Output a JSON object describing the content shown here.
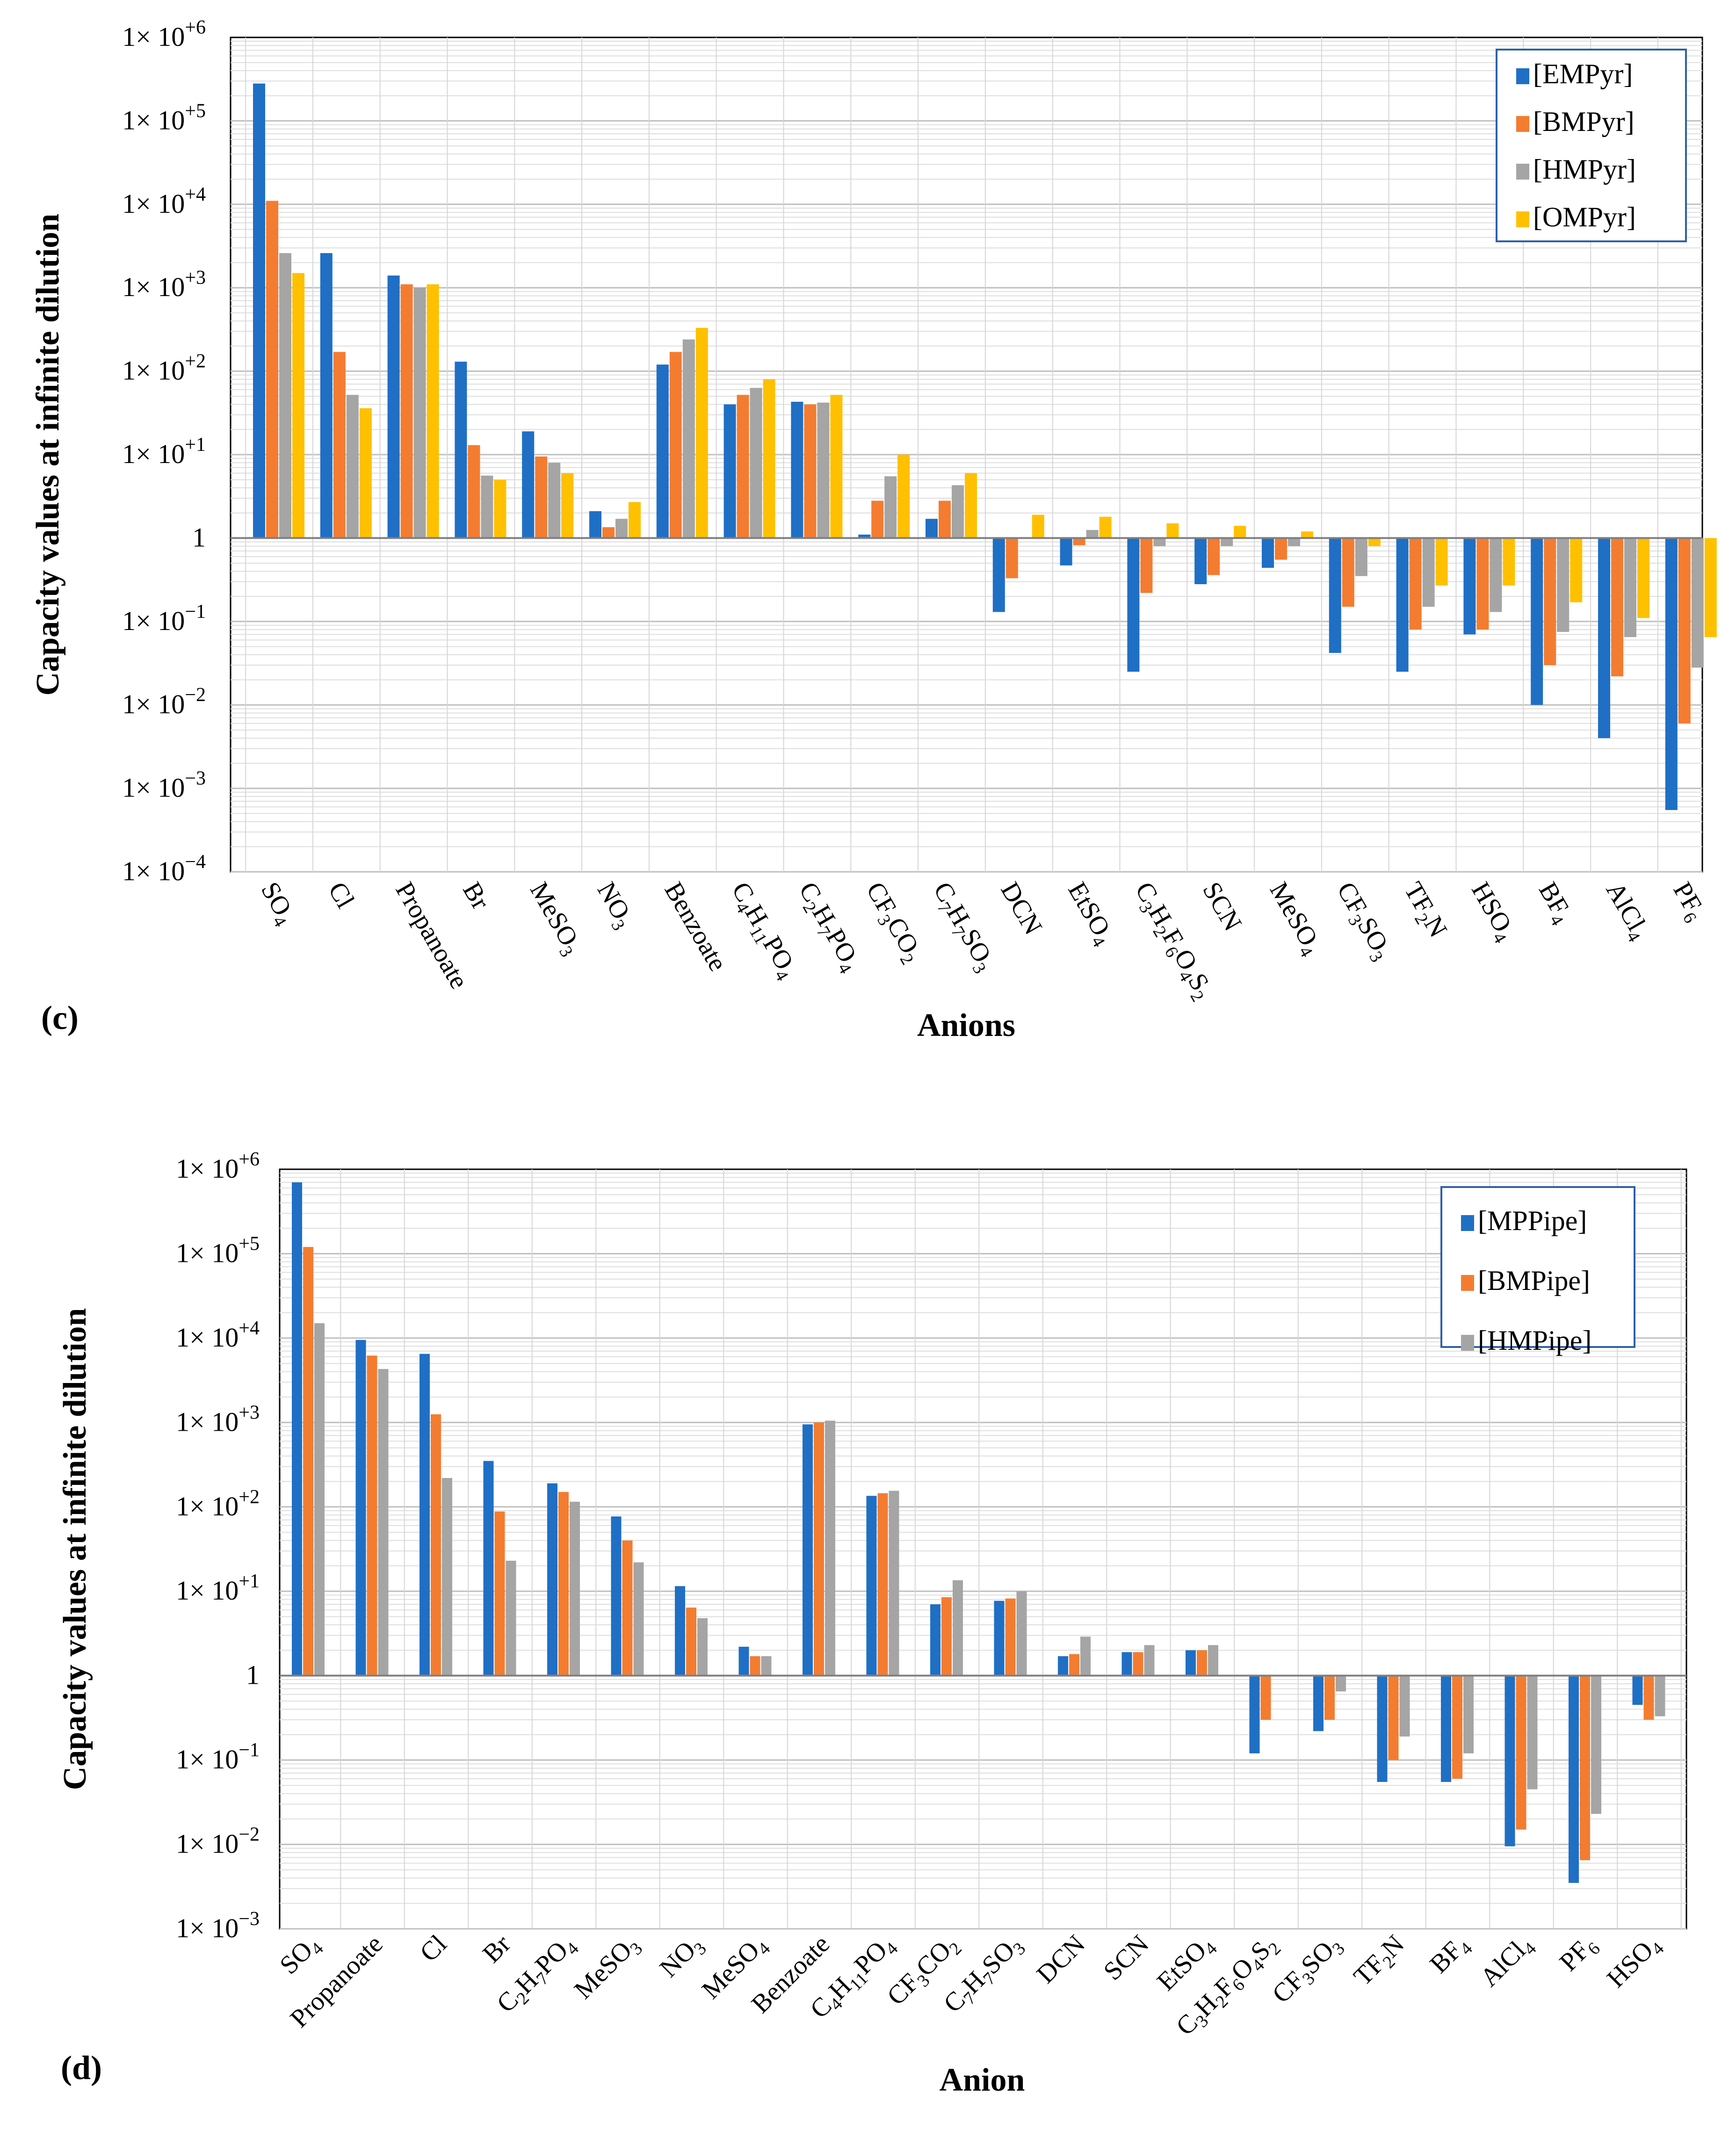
{
  "chart_data": [
    {
      "id": "c",
      "type": "bar",
      "panel_label": "(c)",
      "xlabel": "Anions",
      "ylabel": "Capacity values at infinite dilution",
      "yscale": "log",
      "ylim": [
        0.0001,
        1000000
      ],
      "baseline": 1,
      "grid": true,
      "legend_position": "top-right",
      "y_tick_labels": [
        {
          "base": "1× 10",
          "exp": "+6"
        },
        {
          "base": "1× 10",
          "exp": "+5"
        },
        {
          "base": "1× 10",
          "exp": "+4"
        },
        {
          "base": "1× 10",
          "exp": "+3"
        },
        {
          "base": "1× 10",
          "exp": "+2"
        },
        {
          "base": "1× 10",
          "exp": "+1"
        },
        {
          "base": "1",
          "exp": ""
        },
        {
          "base": "1× 10",
          "exp": "−1"
        },
        {
          "base": "1× 10",
          "exp": "−2"
        },
        {
          "base": "1× 10",
          "exp": "−3"
        },
        {
          "base": "1× 10",
          "exp": "−4"
        }
      ],
      "categories": [
        [
          {
            "t": "SO"
          },
          {
            "t": "4",
            "s": "sub"
          }
        ],
        [
          {
            "t": "Cl"
          }
        ],
        [
          {
            "t": "Propanoate"
          }
        ],
        [
          {
            "t": "Br"
          }
        ],
        [
          {
            "t": "MeSO"
          },
          {
            "t": "3",
            "s": "sub"
          }
        ],
        [
          {
            "t": "NO"
          },
          {
            "t": "3",
            "s": "sub"
          }
        ],
        [
          {
            "t": "Benzoate"
          }
        ],
        [
          {
            "t": "C"
          },
          {
            "t": "4",
            "s": "sub"
          },
          {
            "t": "H"
          },
          {
            "t": "11",
            "s": "sub"
          },
          {
            "t": "PO"
          },
          {
            "t": "4",
            "s": "sub"
          }
        ],
        [
          {
            "t": "C"
          },
          {
            "t": "2",
            "s": "sub"
          },
          {
            "t": "H"
          },
          {
            "t": "7",
            "s": "sub"
          },
          {
            "t": "PO"
          },
          {
            "t": "4",
            "s": "sub"
          }
        ],
        [
          {
            "t": "CF"
          },
          {
            "t": "3",
            "s": "sub"
          },
          {
            "t": "CO"
          },
          {
            "t": "2",
            "s": "sub"
          }
        ],
        [
          {
            "t": "C"
          },
          {
            "t": "7",
            "s": "sub"
          },
          {
            "t": "H"
          },
          {
            "t": "7",
            "s": "sub"
          },
          {
            "t": "SO"
          },
          {
            "t": "3",
            "s": "sub"
          }
        ],
        [
          {
            "t": "DCN"
          }
        ],
        [
          {
            "t": "EtSO"
          },
          {
            "t": "4",
            "s": "sub"
          }
        ],
        [
          {
            "t": "C"
          },
          {
            "t": "3",
            "s": "sub"
          },
          {
            "t": "H"
          },
          {
            "t": "2",
            "s": "sub"
          },
          {
            "t": "F"
          },
          {
            "t": "6",
            "s": "sub"
          },
          {
            "t": "O"
          },
          {
            "t": "4",
            "s": "sub"
          },
          {
            "t": "S"
          },
          {
            "t": "2",
            "s": "sub"
          }
        ],
        [
          {
            "t": "SCN"
          }
        ],
        [
          {
            "t": "MeSO"
          },
          {
            "t": "4",
            "s": "sub"
          }
        ],
        [
          {
            "t": "CF"
          },
          {
            "t": "3",
            "s": "sub"
          },
          {
            "t": "SO"
          },
          {
            "t": "3",
            "s": "sub"
          }
        ],
        [
          {
            "t": "TF"
          },
          {
            "t": "2",
            "s": "sub"
          },
          {
            "t": "N"
          }
        ],
        [
          {
            "t": "HSO"
          },
          {
            "t": "4",
            "s": "sub"
          }
        ],
        [
          {
            "t": "BF"
          },
          {
            "t": "4",
            "s": "sub"
          }
        ],
        [
          {
            "t": "AlCl"
          },
          {
            "t": "4",
            "s": "sub"
          }
        ],
        [
          {
            "t": "PF"
          },
          {
            "t": "6",
            "s": "sub"
          }
        ]
      ],
      "series": [
        {
          "name": "[EMPyr]",
          "color": "#1F6FC5",
          "values": [
            280000,
            2600,
            1400,
            130,
            19,
            2.1,
            120,
            40,
            43,
            1.1,
            1.7,
            0.13,
            0.47,
            0.025,
            0.28,
            0.44,
            0.042,
            0.025,
            0.07,
            0.01,
            0.004,
            0.00055
          ]
        },
        {
          "name": "[BMPyr]",
          "color": "#F47C30",
          "values": [
            11000,
            170,
            1100,
            13,
            9.5,
            1.35,
            170,
            52,
            40,
            2.8,
            2.8,
            0.33,
            0.82,
            0.22,
            0.36,
            0.55,
            0.15,
            0.08,
            0.08,
            0.03,
            0.022,
            0.006
          ]
        },
        {
          "name": "[HMPyr]",
          "color": "#A5A5A5",
          "values": [
            2600,
            52,
            1000,
            5.6,
            8,
            1.7,
            240,
            63,
            42,
            5.5,
            4.3,
            1,
            1.25,
            0.8,
            0.8,
            0.8,
            0.35,
            0.15,
            0.13,
            0.075,
            0.065,
            0.028
          ]
        },
        {
          "name": "[OMPyr]",
          "color": "#FFC000",
          "values": [
            1500,
            36,
            1100,
            5,
            6,
            2.7,
            330,
            80,
            52,
            10,
            6,
            1.9,
            1.8,
            1.5,
            1.4,
            1.2,
            0.8,
            0.27,
            0.27,
            0.17,
            0.11,
            0.065
          ]
        }
      ]
    },
    {
      "id": "d",
      "type": "bar",
      "panel_label": "(d)",
      "xlabel": "Anion",
      "ylabel": "Capacity values at infinite dilution",
      "yscale": "log",
      "ylim": [
        0.001,
        1000000
      ],
      "baseline": 1,
      "grid": true,
      "legend_position": "top-right",
      "y_tick_labels": [
        {
          "base": "1× 10",
          "exp": "+6"
        },
        {
          "base": "1× 10",
          "exp": "+5"
        },
        {
          "base": "1× 10",
          "exp": "+4"
        },
        {
          "base": "1× 10",
          "exp": "+3"
        },
        {
          "base": "1× 10",
          "exp": "+2"
        },
        {
          "base": "1× 10",
          "exp": "+1"
        },
        {
          "base": "1",
          "exp": ""
        },
        {
          "base": "1× 10",
          "exp": "−1"
        },
        {
          "base": "1× 10",
          "exp": "−2"
        },
        {
          "base": "1× 10",
          "exp": "−3"
        }
      ],
      "categories": [
        [
          {
            "t": "SO"
          },
          {
            "t": "4",
            "s": "sub"
          }
        ],
        [
          {
            "t": "Propanoate"
          }
        ],
        [
          {
            "t": "Cl"
          }
        ],
        [
          {
            "t": "Br"
          }
        ],
        [
          {
            "t": "C"
          },
          {
            "t": "2",
            "s": "sub"
          },
          {
            "t": "H"
          },
          {
            "t": "7",
            "s": "sub"
          },
          {
            "t": "PO"
          },
          {
            "t": "4",
            "s": "sub"
          }
        ],
        [
          {
            "t": "MeSO"
          },
          {
            "t": "3",
            "s": "sub"
          }
        ],
        [
          {
            "t": "NO"
          },
          {
            "t": "3",
            "s": "sub"
          }
        ],
        [
          {
            "t": "MeSO"
          },
          {
            "t": "4",
            "s": "sub"
          }
        ],
        [
          {
            "t": "Benzoate"
          }
        ],
        [
          {
            "t": "C"
          },
          {
            "t": "4",
            "s": "sub"
          },
          {
            "t": "H"
          },
          {
            "t": "11",
            "s": "sub"
          },
          {
            "t": "PO"
          },
          {
            "t": "4",
            "s": "sub"
          }
        ],
        [
          {
            "t": "CF"
          },
          {
            "t": "3",
            "s": "sub"
          },
          {
            "t": "CO"
          },
          {
            "t": "2",
            "s": "sub"
          }
        ],
        [
          {
            "t": "C"
          },
          {
            "t": "7",
            "s": "sub"
          },
          {
            "t": "H"
          },
          {
            "t": "7",
            "s": "sub"
          },
          {
            "t": "SO"
          },
          {
            "t": "3",
            "s": "sub"
          }
        ],
        [
          {
            "t": "DCN"
          }
        ],
        [
          {
            "t": "SCN"
          }
        ],
        [
          {
            "t": "EtSO"
          },
          {
            "t": "4",
            "s": "sub"
          }
        ],
        [
          {
            "t": "C"
          },
          {
            "t": "3",
            "s": "sub"
          },
          {
            "t": "H"
          },
          {
            "t": "2",
            "s": "sub"
          },
          {
            "t": "F"
          },
          {
            "t": "6",
            "s": "sub"
          },
          {
            "t": "O"
          },
          {
            "t": "4",
            "s": "sub"
          },
          {
            "t": "S"
          },
          {
            "t": "2",
            "s": "sub"
          }
        ],
        [
          {
            "t": "CF"
          },
          {
            "t": "3",
            "s": "sub"
          },
          {
            "t": "SO"
          },
          {
            "t": "3",
            "s": "sub"
          }
        ],
        [
          {
            "t": "TF"
          },
          {
            "t": "2",
            "s": "sub"
          },
          {
            "t": "N"
          }
        ],
        [
          {
            "t": "BF"
          },
          {
            "t": "4",
            "s": "sub"
          }
        ],
        [
          {
            "t": "AlCl"
          },
          {
            "t": "4",
            "s": "sub"
          }
        ],
        [
          {
            "t": "PF"
          },
          {
            "t": "6",
            "s": "sub"
          }
        ],
        [
          {
            "t": "HSO"
          },
          {
            "t": "4",
            "s": "sub"
          }
        ]
      ],
      "series": [
        {
          "name": "[MPPipe]",
          "color": "#1F6FC5",
          "values": [
            700000,
            9500,
            6500,
            350,
            190,
            77,
            11.5,
            2.2,
            950,
            135,
            7,
            7.7,
            1.7,
            1.9,
            2,
            0.12,
            0.22,
            0.055,
            0.055,
            0.0095,
            0.0035,
            0.45
          ]
        },
        {
          "name": "[BMPipe]",
          "color": "#F47C30",
          "values": [
            120000,
            6200,
            1250,
            88,
            150,
            40,
            6.4,
            1.7,
            1000,
            145,
            8.5,
            8.2,
            1.8,
            1.9,
            2,
            0.3,
            0.3,
            0.1,
            0.06,
            0.015,
            0.0065,
            0.3
          ]
        },
        {
          "name": "[HMPipe]",
          "color": "#A5A5A5",
          "values": [
            15000,
            4300,
            220,
            23,
            115,
            22,
            4.8,
            1.7,
            1050,
            155,
            13.5,
            10,
            2.9,
            2.3,
            2.3,
            1,
            0.65,
            0.19,
            0.12,
            0.045,
            0.023,
            0.33
          ]
        }
      ]
    }
  ]
}
